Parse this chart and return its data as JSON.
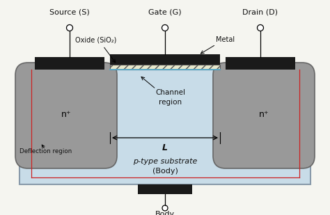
{
  "bg_color": "#f5f5f0",
  "substrate_color": "#c8dce8",
  "substrate_border_color": "#8899aa",
  "n_region_color": "#999999",
  "n_region_border": "#666666",
  "metal_color": "#1a1a1a",
  "oxide_hatch_color": "#444444",
  "red_line_color": "#cc2222",
  "blue_line_color": "#55aacc",
  "text_color": "#111111",
  "source_label": "Source (S)",
  "gate_label": "Gate (G)",
  "drain_label": "Drain (D)",
  "oxide_label": "Oxide (SiO₂)",
  "metal_label": "Metal",
  "channel_label": "Channel\nregion",
  "L_label": "L",
  "deflection_label": "Deflection region",
  "ptype_label": "p-type substrate",
  "body_paren_label": "(Body)",
  "body_label": "Body",
  "n_label": "n⁺"
}
